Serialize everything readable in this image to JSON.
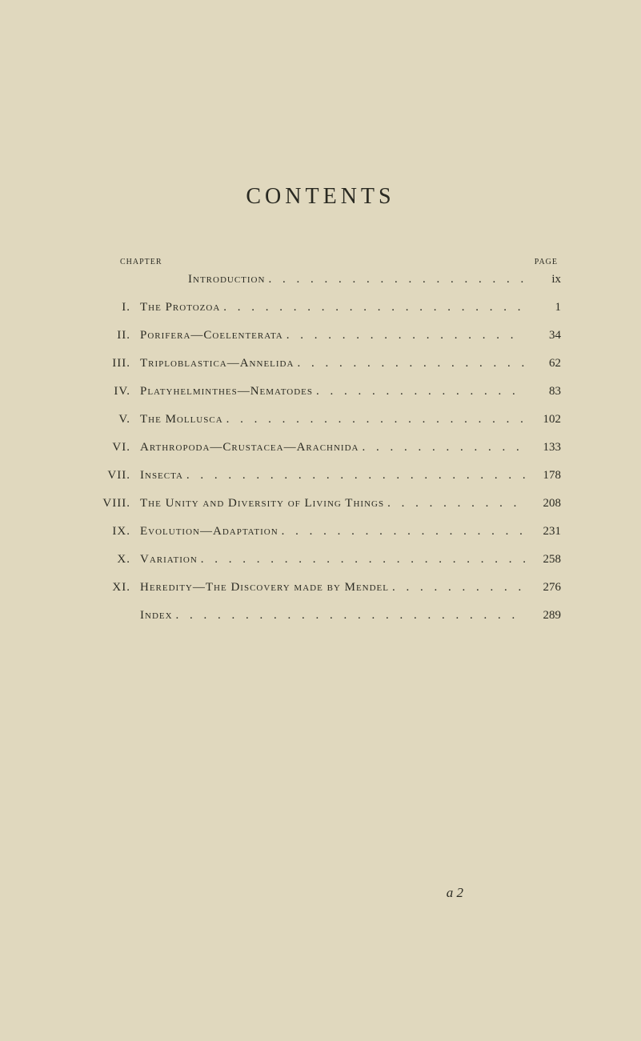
{
  "title": "CONTENTS",
  "headers": {
    "chapter": "CHAPTER",
    "page": "PAGE"
  },
  "introduction": {
    "label": "Introduction",
    "page": "ix"
  },
  "entries": [
    {
      "roman": "I.",
      "title": "The Protozoa",
      "page": "1"
    },
    {
      "roman": "II.",
      "title": "Porifera—Coelenterata",
      "page": "34"
    },
    {
      "roman": "III.",
      "title": "Triploblastica—Annelida",
      "page": "62"
    },
    {
      "roman": "IV.",
      "title": "Platyhelminthes—Nematodes",
      "page": "83"
    },
    {
      "roman": "V.",
      "title": "The Mollusca",
      "page": "102"
    },
    {
      "roman": "VI.",
      "title": "Arthropoda—Crustacea—Arachnida",
      "page": "133"
    },
    {
      "roman": "VII.",
      "title": "Insecta",
      "page": "178"
    },
    {
      "roman": "VIII.",
      "title": "The Unity and Diversity of Living Things",
      "page": "208"
    },
    {
      "roman": "IX.",
      "title": "Evolution—Adaptation",
      "page": "231"
    },
    {
      "roman": "X.",
      "title": "Variation",
      "page": "258"
    },
    {
      "roman": "XI.",
      "title": "Heredity—The Discovery made by Mendel",
      "page": "276"
    },
    {
      "roman": "",
      "title": "Index",
      "page": "289"
    }
  ],
  "signature": "a 2",
  "leader_dots": ". . . . . . . . . . . . . . . . . . . . . . . . . . . . . . . . . . . . . . . ."
}
